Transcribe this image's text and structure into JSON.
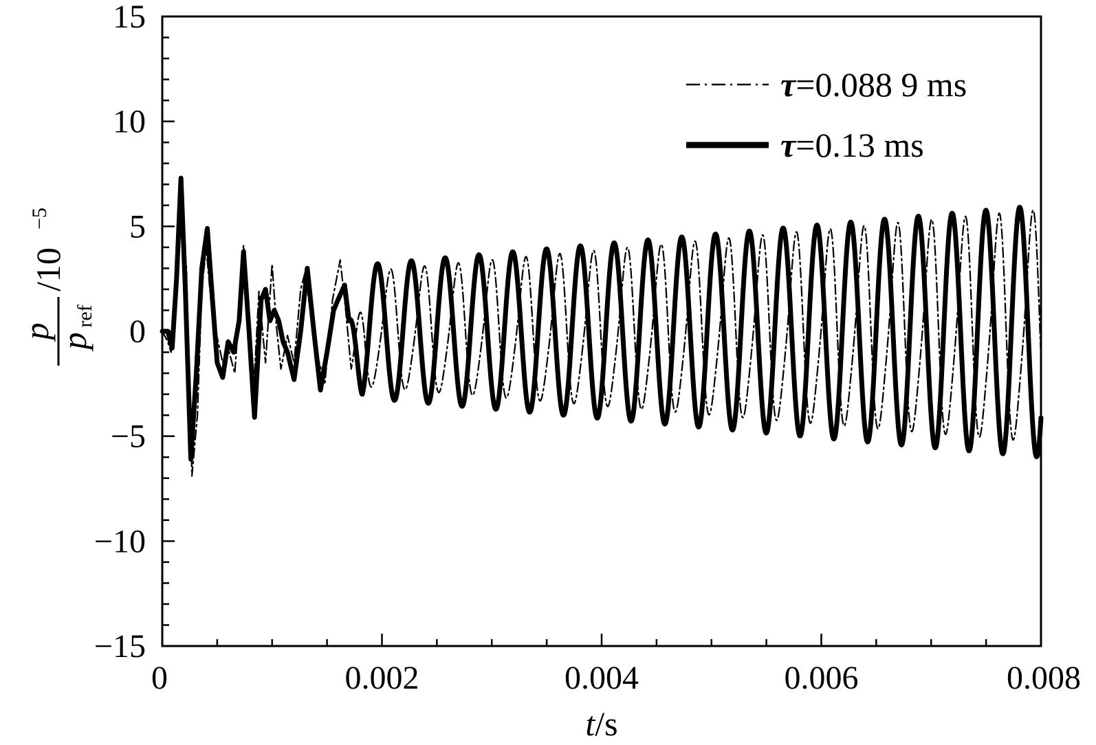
{
  "chart_data": {
    "type": "line",
    "title": "",
    "xlabel": {
      "var": "t",
      "unit": "/s"
    },
    "ylabel": {
      "num": "p",
      "den": "p",
      "den_sub": "ref",
      "scale": "/10",
      "scale_exp": "−5"
    },
    "xlim": [
      0,
      0.008
    ],
    "ylim": [
      -15,
      15
    ],
    "xticks": [
      0,
      0.002,
      0.004,
      0.006,
      0.008
    ],
    "xtick_labels": [
      "0",
      "0.002",
      "0.004",
      "0.006",
      "0.008"
    ],
    "yticks": [
      -15,
      -10,
      -5,
      0,
      5,
      10,
      15
    ],
    "ytick_labels": [
      "−15",
      "−10",
      "−5",
      "0",
      "5",
      "10",
      "15"
    ],
    "legend_position": "top-right",
    "grid": false,
    "series": [
      {
        "name": "τ=0.088 9 ms",
        "legend_symbol": "τ",
        "legend_rest": "=0.088 9 ms",
        "style": "dash-dot",
        "color": "#000000",
        "x": [
          0,
          5e-05,
          8e-05,
          0.00012,
          0.00016,
          0.00022,
          0.00027,
          0.00032,
          0.00036,
          0.0004,
          0.00045,
          0.0005,
          0.00055,
          0.0006,
          0.00066,
          0.0007,
          0.00074,
          0.00078,
          0.00083,
          0.00088,
          0.00094,
          0.001,
          0.00104,
          0.00108,
          0.00114,
          0.0012,
          0.00126,
          0.0013,
          0.00136,
          0.00142,
          0.00148,
          0.00155,
          0.00162,
          0.00167,
          0.00172
        ],
        "y": [
          0,
          -0.5,
          -1,
          2.5,
          7,
          3,
          -6.9,
          -4,
          2,
          4,
          1,
          -0.3,
          -1.5,
          -0.8,
          -2,
          1,
          4.1,
          1,
          -3,
          1.9,
          -1.5,
          3.2,
          0.2,
          -1.8,
          -0.2,
          -1.5,
          2,
          2.8,
          0.5,
          -1.3,
          -2.5,
          1.5,
          3.4,
          1,
          -1.8
        ],
        "osc_start_time": 0.00172,
        "osc_period_ms": 0.3077,
        "osc_amplitude_start": 2.6,
        "osc_amplitude_end": 5.3,
        "osc_phase_offset_ms": 0.11
      },
      {
        "name": "τ=0.13 ms",
        "legend_symbol": "τ",
        "legend_rest": "=0.13 ms",
        "style": "solid",
        "color": "#000000",
        "x": [
          0,
          5e-05,
          9e-05,
          0.00013,
          0.00017,
          0.00021,
          0.00026,
          0.00031,
          0.00036,
          0.00041,
          0.00045,
          0.0005,
          0.00055,
          0.0006,
          0.00065,
          0.0007,
          0.00074,
          0.00079,
          0.00084,
          0.0009,
          0.00094,
          0.00098,
          0.00102,
          0.00106,
          0.0011,
          0.00114,
          0.0012,
          0.00126,
          0.00132,
          0.00138,
          0.00144,
          0.0015,
          0.00156,
          0.0016,
          0.00166,
          0.0017
        ],
        "y": [
          0,
          0,
          -0.8,
          2.5,
          7.3,
          2,
          -6.1,
          -2,
          3,
          4.9,
          2,
          -1.5,
          -2.2,
          -0.5,
          -1,
          0.5,
          3.8,
          0,
          -4.1,
          1.5,
          2,
          0.5,
          1,
          0.5,
          -0.5,
          -1,
          -2.3,
          0,
          3,
          0,
          -2.8,
          -1,
          1,
          1.5,
          2.2,
          0.5
        ],
        "osc_start_time": 0.0017,
        "osc_period_ms": 0.3077,
        "osc_amplitude_start": 3.1,
        "osc_amplitude_end": 6,
        "osc_phase_offset_ms": 0
      }
    ]
  }
}
